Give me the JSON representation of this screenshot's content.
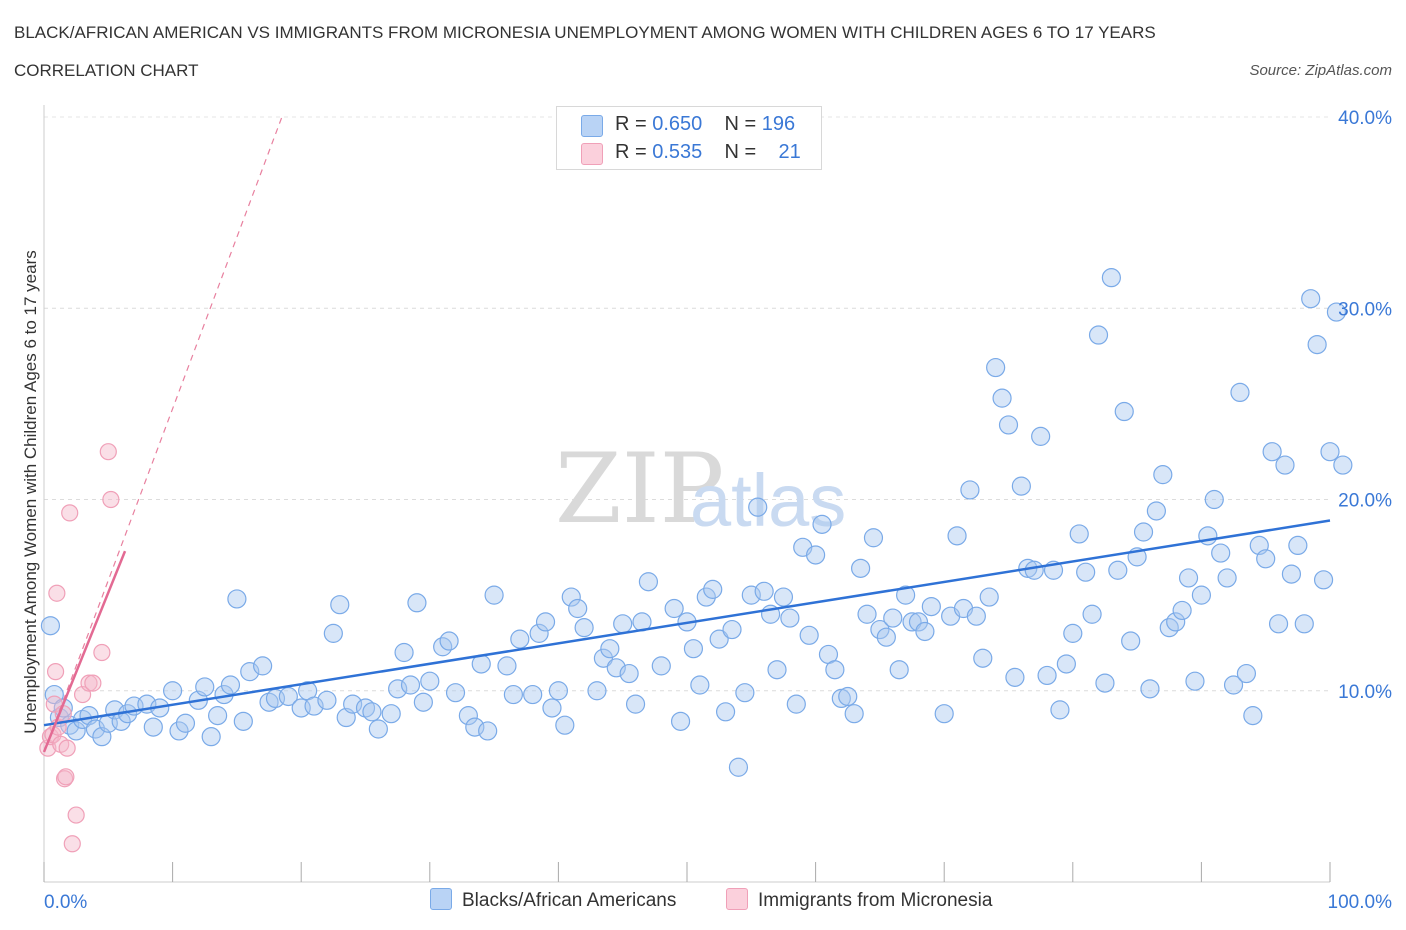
{
  "header": {
    "title": "BLACK/AFRICAN AMERICAN VS IMMIGRANTS FROM MICRONESIA UNEMPLOYMENT AMONG WOMEN WITH CHILDREN AGES 6 TO 17 YEARS CORRELATION CHART",
    "source": "Source: ZipAtlas.com"
  },
  "watermark": {
    "zip": "ZIP",
    "atlas": "atlas"
  },
  "legend": {
    "rows": [
      {
        "r_label": "R =",
        "r": "0.650",
        "n_label": "N =",
        "n": "196",
        "color": "#a9c8f0"
      },
      {
        "r_label": "R =",
        "r": "0.535",
        "n_label": "N =",
        "n": "21",
        "color": "#f5b8c9"
      }
    ]
  },
  "chart_data": {
    "type": "scatter",
    "title": "BLACK/AFRICAN AMERICAN VS IMMIGRANTS FROM MICRONESIA UNEMPLOYMENT AMONG WOMEN WITH CHILDREN AGES 6 TO 17 YEARS CORRELATION CHART",
    "xlabel": "",
    "ylabel": "Unemployment Among Women with Children Ages 6 to 17 years",
    "xlim": [
      0,
      100
    ],
    "ylim": [
      0,
      40
    ],
    "x_tick_labels": [
      "0.0%",
      "100.0%"
    ],
    "y_ticks": [
      10,
      20,
      30,
      40
    ],
    "y_tick_labels": [
      "10.0%",
      "20.0%",
      "30.0%",
      "40.0%"
    ],
    "grid": true,
    "legend_position": "bottom",
    "series": [
      {
        "name": "Blacks/African Americans",
        "color": "#7aaae8",
        "trend": {
          "x": [
            0,
            100
          ],
          "y": [
            8.2,
            18.9
          ]
        },
        "points": [
          [
            0.5,
            13.4
          ],
          [
            0.8,
            9.8
          ],
          [
            1.2,
            8.6
          ],
          [
            1.5,
            9.1
          ],
          [
            2.0,
            8.2
          ],
          [
            2.5,
            7.9
          ],
          [
            3.0,
            8.5
          ],
          [
            3.5,
            8.7
          ],
          [
            4.0,
            8.0
          ],
          [
            4.5,
            7.6
          ],
          [
            5.0,
            8.3
          ],
          [
            5.5,
            9.0
          ],
          [
            6.0,
            8.4
          ],
          [
            6.5,
            8.8
          ],
          [
            7.0,
            9.2
          ],
          [
            8.0,
            9.3
          ],
          [
            8.5,
            8.1
          ],
          [
            9.0,
            9.1
          ],
          [
            10.0,
            10.0
          ],
          [
            10.5,
            7.9
          ],
          [
            11.0,
            8.3
          ],
          [
            12.0,
            9.5
          ],
          [
            12.5,
            10.2
          ],
          [
            13.0,
            7.6
          ],
          [
            13.5,
            8.7
          ],
          [
            14.0,
            9.8
          ],
          [
            14.5,
            10.3
          ],
          [
            15.0,
            14.8
          ],
          [
            15.5,
            8.4
          ],
          [
            16.0,
            11.0
          ],
          [
            17.0,
            11.3
          ],
          [
            17.5,
            9.4
          ],
          [
            18.0,
            9.6
          ],
          [
            19.0,
            9.7
          ],
          [
            20.0,
            9.1
          ],
          [
            20.5,
            10.0
          ],
          [
            21.0,
            9.2
          ],
          [
            22.0,
            9.5
          ],
          [
            22.5,
            13.0
          ],
          [
            23.0,
            14.5
          ],
          [
            23.5,
            8.6
          ],
          [
            24.0,
            9.3
          ],
          [
            25.0,
            9.1
          ],
          [
            25.5,
            8.9
          ],
          [
            26.0,
            8.0
          ],
          [
            27.0,
            8.8
          ],
          [
            27.5,
            10.1
          ],
          [
            28.0,
            12.0
          ],
          [
            28.5,
            10.3
          ],
          [
            29.0,
            14.6
          ],
          [
            29.5,
            9.4
          ],
          [
            30.0,
            10.5
          ],
          [
            31.0,
            12.3
          ],
          [
            31.5,
            12.6
          ],
          [
            32.0,
            9.9
          ],
          [
            33.0,
            8.7
          ],
          [
            33.5,
            8.1
          ],
          [
            34.0,
            11.4
          ],
          [
            34.5,
            7.9
          ],
          [
            35.0,
            15.0
          ],
          [
            36.0,
            11.3
          ],
          [
            36.5,
            9.8
          ],
          [
            37.0,
            12.7
          ],
          [
            38.0,
            9.8
          ],
          [
            38.5,
            13.0
          ],
          [
            39.0,
            13.6
          ],
          [
            39.5,
            9.1
          ],
          [
            40.0,
            10.0
          ],
          [
            40.5,
            8.2
          ],
          [
            41.0,
            14.9
          ],
          [
            41.5,
            14.3
          ],
          [
            42.0,
            13.3
          ],
          [
            43.0,
            10.0
          ],
          [
            43.5,
            11.7
          ],
          [
            44.0,
            12.2
          ],
          [
            44.5,
            11.2
          ],
          [
            45.0,
            13.5
          ],
          [
            45.5,
            10.9
          ],
          [
            46.0,
            9.3
          ],
          [
            46.5,
            13.6
          ],
          [
            47.0,
            15.7
          ],
          [
            48.0,
            11.3
          ],
          [
            49.0,
            14.3
          ],
          [
            49.5,
            8.4
          ],
          [
            50.0,
            13.6
          ],
          [
            50.5,
            12.2
          ],
          [
            51.0,
            10.3
          ],
          [
            51.5,
            14.9
          ],
          [
            52.0,
            15.3
          ],
          [
            52.5,
            12.7
          ],
          [
            53.0,
            8.9
          ],
          [
            53.5,
            13.2
          ],
          [
            54.0,
            6.0
          ],
          [
            54.5,
            9.9
          ],
          [
            55.0,
            15.0
          ],
          [
            55.5,
            19.6
          ],
          [
            56.0,
            15.2
          ],
          [
            56.5,
            14.0
          ],
          [
            57.0,
            11.1
          ],
          [
            57.5,
            14.9
          ],
          [
            58.0,
            13.8
          ],
          [
            58.5,
            9.3
          ],
          [
            59.0,
            17.5
          ],
          [
            59.5,
            12.9
          ],
          [
            60.0,
            17.1
          ],
          [
            60.5,
            18.7
          ],
          [
            61.0,
            11.9
          ],
          [
            61.5,
            11.1
          ],
          [
            62.0,
            9.6
          ],
          [
            62.5,
            9.7
          ],
          [
            63.0,
            8.8
          ],
          [
            63.5,
            16.4
          ],
          [
            64.0,
            14.0
          ],
          [
            64.5,
            18.0
          ],
          [
            65.0,
            13.2
          ],
          [
            65.5,
            12.8
          ],
          [
            66.0,
            13.8
          ],
          [
            66.5,
            11.1
          ],
          [
            67.0,
            15.0
          ],
          [
            67.5,
            13.6
          ],
          [
            68.0,
            13.6
          ],
          [
            68.5,
            13.1
          ],
          [
            69.0,
            14.4
          ],
          [
            70.0,
            8.8
          ],
          [
            70.5,
            13.9
          ],
          [
            71.0,
            18.1
          ],
          [
            71.5,
            14.3
          ],
          [
            72.0,
            20.5
          ],
          [
            72.5,
            13.9
          ],
          [
            73.0,
            11.7
          ],
          [
            73.5,
            14.9
          ],
          [
            74.0,
            26.9
          ],
          [
            74.5,
            25.3
          ],
          [
            75.0,
            23.9
          ],
          [
            75.5,
            10.7
          ],
          [
            76.0,
            20.7
          ],
          [
            76.5,
            16.4
          ],
          [
            77.0,
            16.3
          ],
          [
            77.5,
            23.3
          ],
          [
            78.0,
            10.8
          ],
          [
            78.5,
            16.3
          ],
          [
            79.0,
            9.0
          ],
          [
            79.5,
            11.4
          ],
          [
            80.0,
            13.0
          ],
          [
            80.5,
            18.2
          ],
          [
            81.0,
            16.2
          ],
          [
            81.5,
            14.0
          ],
          [
            82.0,
            28.6
          ],
          [
            82.5,
            10.4
          ],
          [
            83.0,
            31.6
          ],
          [
            83.5,
            16.3
          ],
          [
            84.0,
            24.6
          ],
          [
            84.5,
            12.6
          ],
          [
            85.0,
            17.0
          ],
          [
            85.5,
            18.3
          ],
          [
            86.0,
            10.1
          ],
          [
            86.5,
            19.4
          ],
          [
            87.0,
            21.3
          ],
          [
            87.5,
            13.3
          ],
          [
            88.0,
            13.6
          ],
          [
            88.5,
            14.2
          ],
          [
            89.0,
            15.9
          ],
          [
            89.5,
            10.5
          ],
          [
            90.0,
            15.0
          ],
          [
            90.5,
            18.1
          ],
          [
            91.0,
            20.0
          ],
          [
            91.5,
            17.2
          ],
          [
            92.0,
            15.9
          ],
          [
            92.5,
            10.3
          ],
          [
            93.0,
            25.6
          ],
          [
            93.5,
            10.9
          ],
          [
            94.0,
            8.7
          ],
          [
            94.5,
            17.6
          ],
          [
            95.0,
            16.9
          ],
          [
            95.5,
            22.5
          ],
          [
            96.0,
            13.5
          ],
          [
            96.5,
            21.8
          ],
          [
            97.0,
            16.1
          ],
          [
            97.5,
            17.6
          ],
          [
            98.0,
            13.5
          ],
          [
            98.5,
            30.5
          ],
          [
            99.0,
            28.1
          ],
          [
            99.5,
            15.8
          ],
          [
            100.0,
            22.5
          ],
          [
            100.5,
            29.8
          ],
          [
            101.0,
            21.8
          ]
        ]
      },
      {
        "name": "Immigrants from Micronesia",
        "color": "#f0a0b8",
        "trend": {
          "x": [
            0,
            6.3
          ],
          "y": [
            6.8,
            17.3
          ]
        },
        "trend_extended": {
          "x": [
            0,
            18.5
          ],
          "y": [
            6.8,
            40
          ]
        },
        "points": [
          [
            0.3,
            7.0
          ],
          [
            0.5,
            7.6
          ],
          [
            0.7,
            7.7
          ],
          [
            0.8,
            9.3
          ],
          [
            0.9,
            11.0
          ],
          [
            1.0,
            15.1
          ],
          [
            1.1,
            8.1
          ],
          [
            1.3,
            7.2
          ],
          [
            1.5,
            8.8
          ],
          [
            1.6,
            5.4
          ],
          [
            1.7,
            5.5
          ],
          [
            1.8,
            7.0
          ],
          [
            2.0,
            19.3
          ],
          [
            2.2,
            2.0
          ],
          [
            2.5,
            3.5
          ],
          [
            3.0,
            9.8
          ],
          [
            3.5,
            10.4
          ],
          [
            3.8,
            10.4
          ],
          [
            4.5,
            12.0
          ],
          [
            5.0,
            22.5
          ],
          [
            5.2,
            20.0
          ]
        ]
      }
    ]
  },
  "bottom_legend": [
    "Blacks/African Americans",
    "Immigrants from Micronesia"
  ]
}
